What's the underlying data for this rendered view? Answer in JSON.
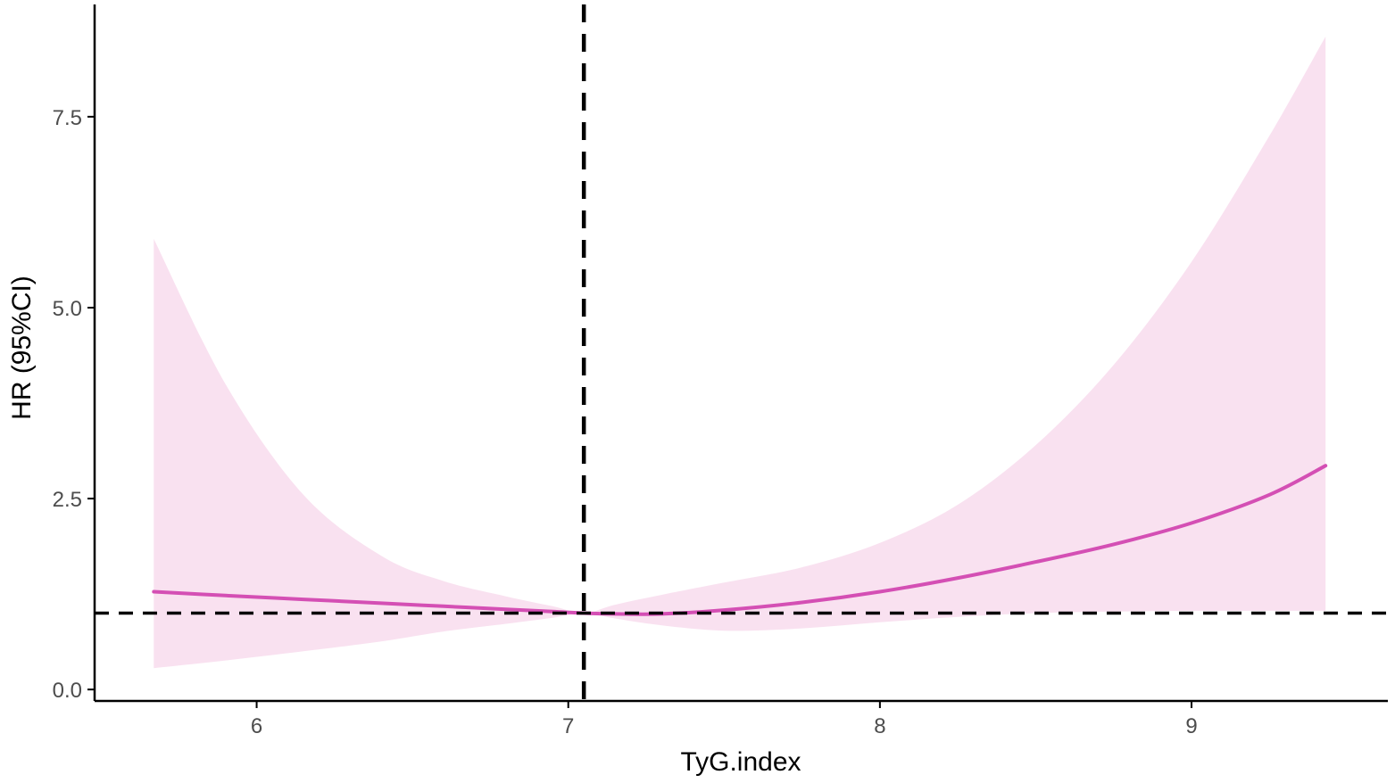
{
  "chart_data": {
    "type": "line",
    "xlabel": "TyG.index",
    "ylabel": "HR (95%CI)",
    "xlim": [
      5.48,
      9.63
    ],
    "ylim": [
      -0.15,
      8.97
    ],
    "x_ticks": [
      6,
      7,
      8,
      9
    ],
    "x_tick_labels": [
      "6",
      "7",
      "8",
      "9"
    ],
    "y_ticks": [
      0,
      2.5,
      5,
      7.5
    ],
    "y_tick_labels": [
      "0.0",
      "2.5",
      "5.0",
      "7.5"
    ],
    "reference_lines": {
      "hr": 1.0,
      "tyg_index": 7.05
    },
    "grid": false,
    "legend": "none",
    "colors": {
      "line": "#d44fb4",
      "band": "#f9e1f0",
      "reference": "#000000",
      "axis": "#000000"
    },
    "series": [
      {
        "x": [
          5.67,
          5.9,
          6.15,
          6.4,
          6.6,
          6.8,
          6.95,
          7.05,
          7.15,
          7.3,
          7.5,
          7.75,
          8.0,
          8.25,
          8.5,
          8.75,
          9.0,
          9.25,
          9.43
        ],
        "y": [
          1.28,
          1.23,
          1.18,
          1.13,
          1.09,
          1.05,
          1.02,
          1.0,
          0.99,
          0.99,
          1.04,
          1.14,
          1.28,
          1.46,
          1.67,
          1.9,
          2.18,
          2.55,
          2.93
        ],
        "lower": [
          0.28,
          0.38,
          0.5,
          0.63,
          0.76,
          0.86,
          0.94,
          1.0,
          0.93,
          0.84,
          0.77,
          0.8,
          0.88,
          0.95,
          1.0,
          1.02,
          1.03,
          1.03,
          1.03
        ],
        "upper": [
          5.9,
          4.0,
          2.55,
          1.75,
          1.42,
          1.22,
          1.09,
          1.0,
          1.11,
          1.24,
          1.4,
          1.6,
          1.92,
          2.42,
          3.2,
          4.25,
          5.6,
          7.25,
          8.55
        ]
      }
    ]
  }
}
